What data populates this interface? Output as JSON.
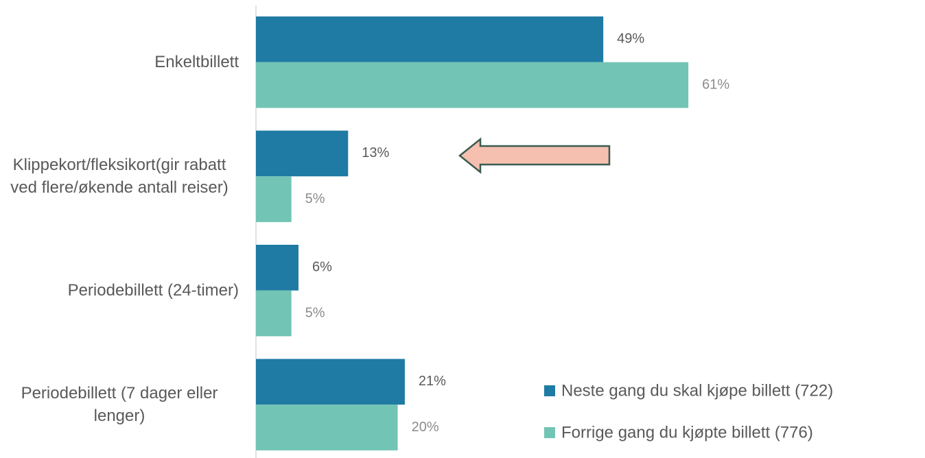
{
  "chart_data": {
    "type": "bar",
    "orientation": "horizontal",
    "categories": [
      "Enkeltbillett",
      "Klippekort/fleksikort(gir rabatt ved flere/økende antall reiser)",
      "Periodebillett (24-timer)",
      "Periodebillett (7 dager eller lenger)"
    ],
    "series": [
      {
        "name": "Neste gang du skal kjøpe billett (722)",
        "color": "#1f7ba3",
        "values": [
          49,
          13,
          6,
          21
        ],
        "value_labels": [
          "49%",
          "13%",
          "6%",
          "21%"
        ]
      },
      {
        "name": "Forrige gang du kjøpte billett (776)",
        "color": "#72c4b4",
        "values": [
          61,
          5,
          5,
          20
        ],
        "value_labels": [
          "61%",
          "5%",
          "5%",
          "20%"
        ]
      }
    ],
    "legend": "bottom-right"
  }
}
